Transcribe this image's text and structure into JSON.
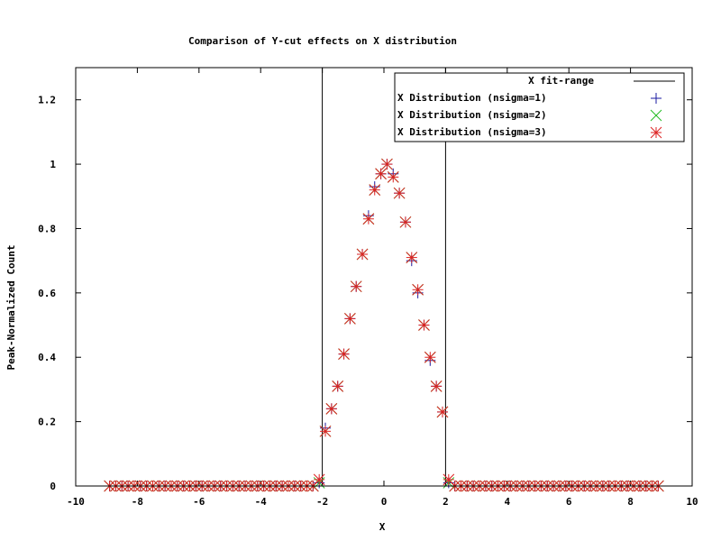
{
  "chart_data": {
    "type": "scatter",
    "title": "Comparison of Y-cut effects on X distribution",
    "xlabel": "X",
    "ylabel": "Peak-Normalized Count",
    "xlim": [
      -10,
      10
    ],
    "ylim": [
      0,
      1.3
    ],
    "grid": false,
    "legend_position": "top-right",
    "x_ticks": [
      "-10",
      "-8",
      "-6",
      "-4",
      "-2",
      "0",
      "2",
      "4",
      "6",
      "8",
      "10"
    ],
    "y_ticks": [
      "0",
      "0.2",
      "0.4",
      "0.6",
      "0.8",
      "1",
      "1.2"
    ],
    "fit_range": {
      "label": "X fit-range",
      "bounds": [
        -2,
        2
      ],
      "color": "#000000"
    },
    "x": [
      -8.9,
      -8.7,
      -8.5,
      -8.3,
      -8.1,
      -7.9,
      -7.7,
      -7.5,
      -7.3,
      -7.1,
      -6.9,
      -6.7,
      -6.5,
      -6.3,
      -6.1,
      -5.9,
      -5.7,
      -5.5,
      -5.3,
      -5.1,
      -4.9,
      -4.7,
      -4.5,
      -4.3,
      -4.1,
      -3.9,
      -3.7,
      -3.5,
      -3.3,
      -3.1,
      -2.9,
      -2.7,
      -2.5,
      -2.3,
      -2.1,
      -1.9,
      -1.7,
      -1.5,
      -1.3,
      -1.1,
      -0.9,
      -0.7,
      -0.5,
      -0.3,
      -0.1,
      0.1,
      0.3,
      0.5,
      0.7,
      0.9,
      1.1,
      1.3,
      1.5,
      1.7,
      1.9,
      2.1,
      2.3,
      2.5,
      2.7,
      2.9,
      3.1,
      3.3,
      3.5,
      3.7,
      3.9,
      4.1,
      4.3,
      4.5,
      4.7,
      4.9,
      5.1,
      5.3,
      5.5,
      5.7,
      5.9,
      6.1,
      6.3,
      6.5,
      6.7,
      6.9,
      7.1,
      7.3,
      7.5,
      7.7,
      7.9,
      8.1,
      8.3,
      8.5,
      8.7,
      8.9
    ],
    "series": [
      {
        "name": "X Distribution (nsigma=1)",
        "marker": "plus",
        "color": "#1a1aa0",
        "values": [
          0,
          0,
          0,
          0,
          0,
          0,
          0,
          0,
          0,
          0,
          0,
          0,
          0,
          0,
          0,
          0,
          0,
          0,
          0,
          0,
          0,
          0,
          0,
          0,
          0,
          0,
          0,
          0,
          0,
          0,
          0,
          0,
          0,
          0,
          0.01,
          0.18,
          0.24,
          0.31,
          0.41,
          0.52,
          0.62,
          0.72,
          0.84,
          0.93,
          0.97,
          1.0,
          0.97,
          0.91,
          0.82,
          0.7,
          0.6,
          0.5,
          0.39,
          0.31,
          0.23,
          0.01,
          0,
          0,
          0,
          0,
          0,
          0,
          0,
          0,
          0,
          0,
          0,
          0,
          0,
          0,
          0,
          0,
          0,
          0,
          0,
          0,
          0,
          0,
          0,
          0,
          0,
          0,
          0,
          0,
          0,
          0,
          0,
          0,
          0,
          0
        ]
      },
      {
        "name": "X Distribution (nsigma=2)",
        "marker": "cross",
        "color": "#22bb22",
        "values": [
          0,
          0,
          0,
          0,
          0,
          0,
          0,
          0,
          0,
          0,
          0,
          0,
          0,
          0,
          0,
          0,
          0,
          0,
          0,
          0,
          0,
          0,
          0,
          0,
          0,
          0,
          0,
          0,
          0,
          0,
          0,
          0,
          0,
          0,
          0.01,
          0.17,
          0.24,
          0.31,
          0.41,
          0.52,
          0.62,
          0.72,
          0.83,
          0.92,
          0.97,
          1.0,
          0.96,
          0.91,
          0.82,
          0.71,
          0.61,
          0.5,
          0.4,
          0.31,
          0.23,
          0.01,
          0,
          0,
          0,
          0,
          0,
          0,
          0,
          0,
          0,
          0,
          0,
          0,
          0,
          0,
          0,
          0,
          0,
          0,
          0,
          0,
          0,
          0,
          0,
          0,
          0,
          0,
          0,
          0,
          0,
          0,
          0,
          0,
          0,
          0
        ]
      },
      {
        "name": "X Distribution (nsigma=3)",
        "marker": "star",
        "color": "#dd2222",
        "values": [
          0,
          0,
          0,
          0,
          0,
          0,
          0,
          0,
          0,
          0,
          0,
          0,
          0,
          0,
          0,
          0,
          0,
          0,
          0,
          0,
          0,
          0,
          0,
          0,
          0,
          0,
          0,
          0,
          0,
          0,
          0,
          0,
          0,
          0,
          0.02,
          0.17,
          0.24,
          0.31,
          0.41,
          0.52,
          0.62,
          0.72,
          0.83,
          0.92,
          0.97,
          1.0,
          0.96,
          0.91,
          0.82,
          0.71,
          0.61,
          0.5,
          0.4,
          0.31,
          0.23,
          0.02,
          0,
          0,
          0,
          0,
          0,
          0,
          0,
          0,
          0,
          0,
          0,
          0,
          0,
          0,
          0,
          0,
          0,
          0,
          0,
          0,
          0,
          0,
          0,
          0,
          0,
          0,
          0,
          0,
          0,
          0,
          0,
          0,
          0,
          0
        ]
      }
    ]
  }
}
